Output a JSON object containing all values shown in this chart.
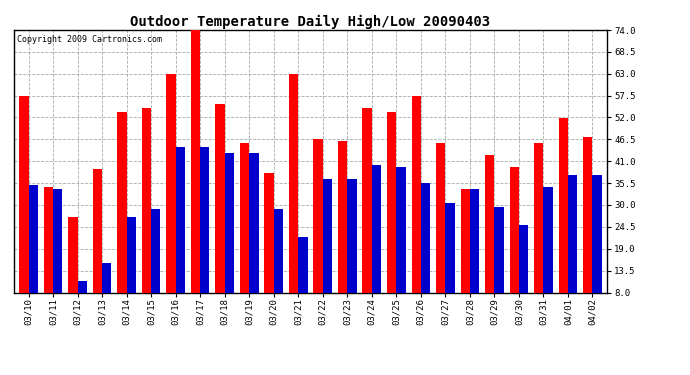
{
  "title": "Outdoor Temperature Daily High/Low 20090403",
  "copyright": "Copyright 2009 Cartronics.com",
  "dates": [
    "03/10",
    "03/11",
    "03/12",
    "03/13",
    "03/14",
    "03/15",
    "03/16",
    "03/17",
    "03/18",
    "03/19",
    "03/20",
    "03/21",
    "03/22",
    "03/23",
    "03/24",
    "03/25",
    "03/26",
    "03/27",
    "03/28",
    "03/29",
    "03/30",
    "03/31",
    "04/01",
    "04/02"
  ],
  "highs": [
    57.5,
    34.5,
    27.0,
    39.0,
    53.5,
    54.5,
    63.0,
    74.0,
    55.5,
    45.5,
    38.0,
    63.0,
    46.5,
    46.0,
    54.5,
    53.5,
    57.5,
    45.5,
    34.0,
    42.5,
    39.5,
    45.5,
    52.0,
    47.0
  ],
  "lows": [
    35.0,
    34.0,
    11.0,
    15.5,
    27.0,
    29.0,
    44.5,
    44.5,
    43.0,
    43.0,
    29.0,
    22.0,
    36.5,
    36.5,
    40.0,
    39.5,
    35.5,
    30.5,
    34.0,
    29.5,
    25.0,
    34.5,
    37.5,
    37.5
  ],
  "high_color": "#ff0000",
  "low_color": "#0000cc",
  "background_color": "#ffffff",
  "yticks": [
    8.0,
    13.5,
    19.0,
    24.5,
    30.0,
    35.5,
    41.0,
    46.5,
    52.0,
    57.5,
    63.0,
    68.5,
    74.0
  ],
  "ymin": 8.0,
  "ymax": 74.0,
  "grid_color": "#aaaaaa",
  "title_fontsize": 10,
  "copyright_fontsize": 6,
  "tick_fontsize": 6.5,
  "bar_width": 0.38
}
